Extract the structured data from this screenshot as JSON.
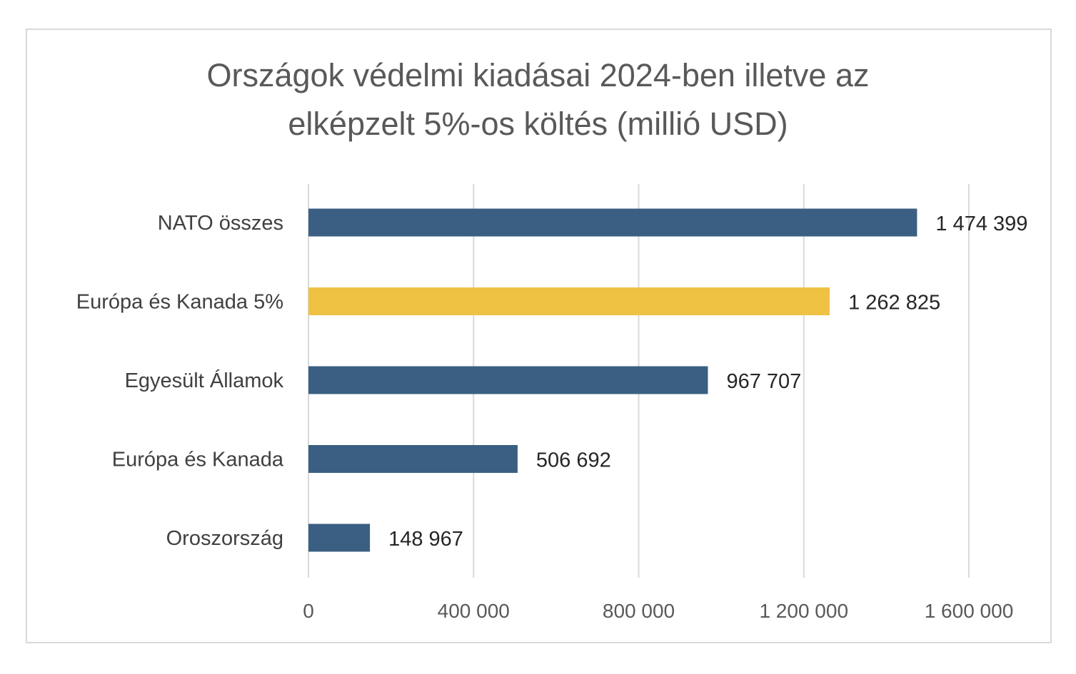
{
  "chart_data": {
    "type": "bar",
    "orientation": "horizontal",
    "title_line1": "Országok védelmi kiadásai 2024-ben illetve az",
    "title_line2": "elképzelt 5%-os költés (millió USD)",
    "categories": [
      "NATO összes",
      "Európa és Kanada 5%",
      "Egyesült Államok",
      "Európa és Kanada",
      "Oroszország"
    ],
    "values": [
      1474399,
      1262825,
      967707,
      506692,
      148967
    ],
    "value_labels": [
      "1 474 399",
      "1 262 825",
      "967 707",
      "506 692",
      "148 967"
    ],
    "colors": [
      "#3a5f82",
      "#efc244",
      "#3a5f82",
      "#3a5f82",
      "#3a5f82"
    ],
    "xlim": [
      0,
      1600000
    ],
    "x_ticks": [
      0,
      400000,
      800000,
      1200000,
      1600000
    ],
    "x_tick_labels": [
      "0",
      "400 000",
      "800 000",
      "1 200 000",
      "1 600 000"
    ],
    "grid": "vertical",
    "legend": "none",
    "gridline_color": "#d9d9d9"
  }
}
